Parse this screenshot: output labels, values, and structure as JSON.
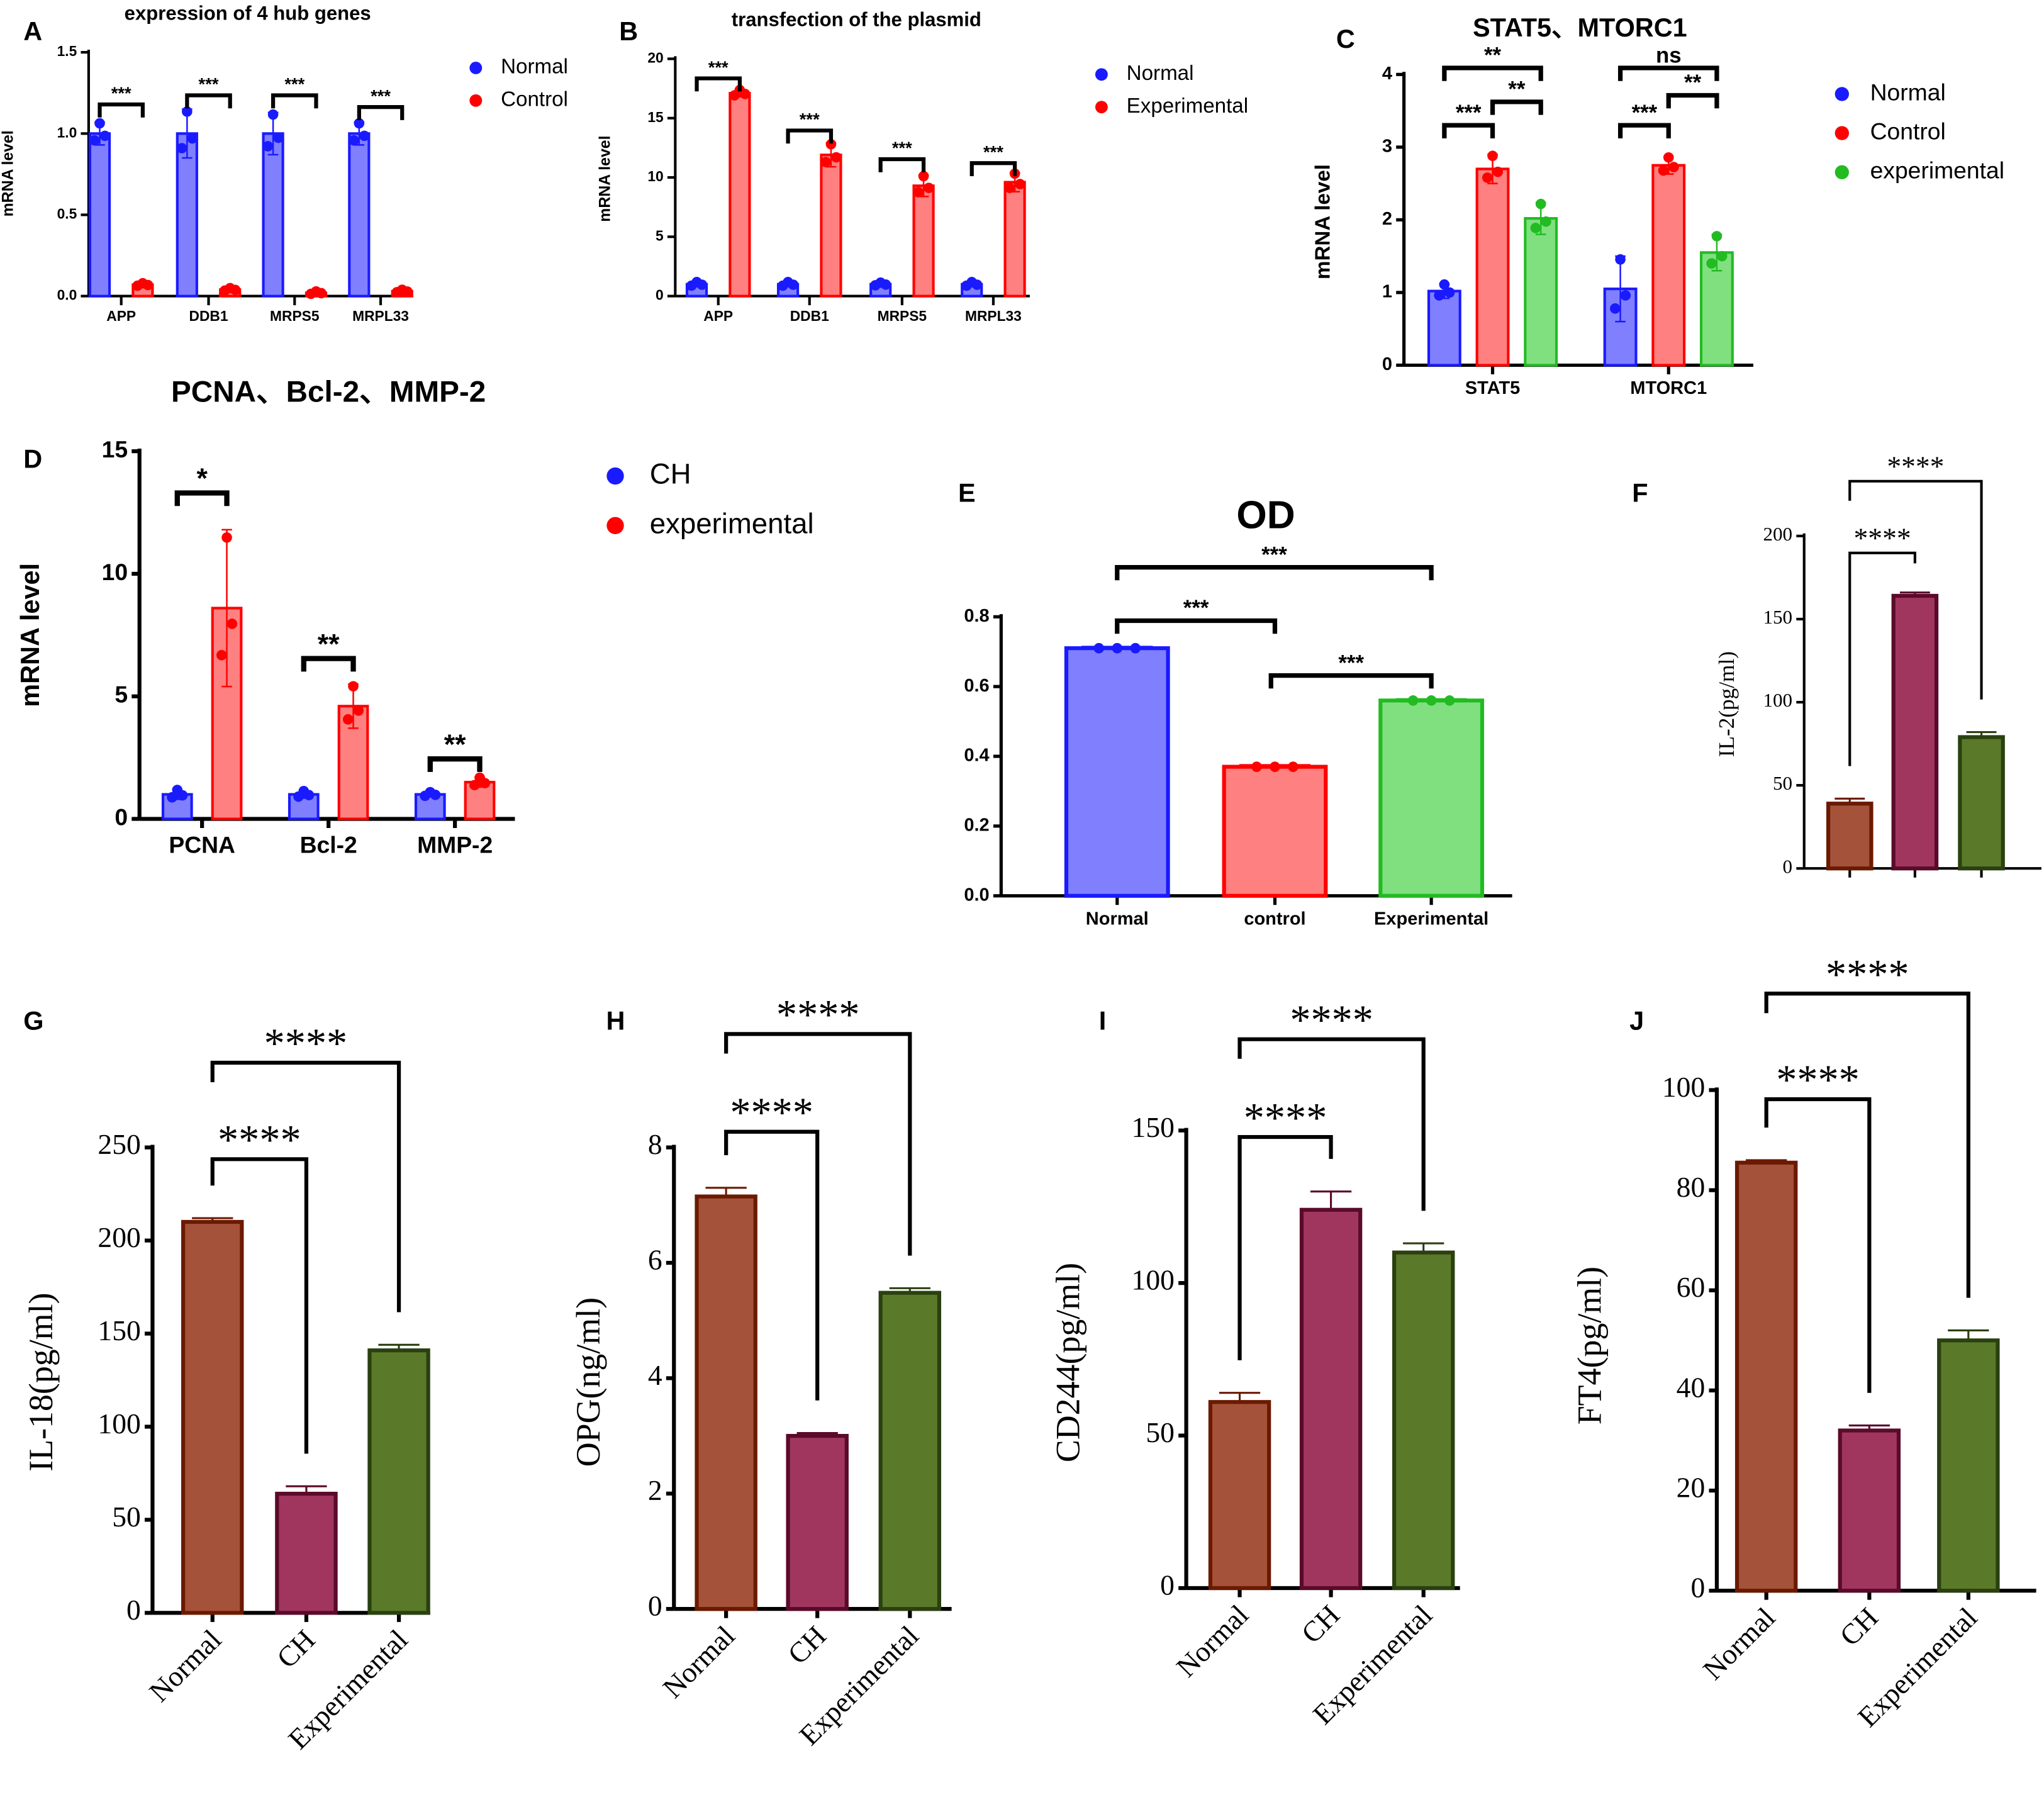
{
  "chart_data": [
    {
      "id": "A",
      "type": "bar",
      "title": "expression of 4 hub genes",
      "ylabel": "mRNA level",
      "ylim": [
        0,
        1.5
      ],
      "yticks": [
        "0.0",
        "0.5",
        "1.0",
        "1.5"
      ],
      "ytick_values": [
        0,
        0.5,
        1.0,
        1.5
      ],
      "categories": [
        "APP",
        "DDB1",
        "MRPS5",
        "MRPL33"
      ],
      "series": [
        {
          "name": "Normal",
          "color": "#1a1aff",
          "fill": "#8080ff",
          "values": [
            1,
            1,
            1,
            1
          ],
          "err": [
            0.07,
            0.15,
            0.13,
            0.07
          ]
        },
        {
          "name": "Control",
          "color": "#ff0000",
          "fill": "#ff8080",
          "values": [
            0.07,
            0.04,
            0.02,
            0.03
          ],
          "err": [
            0.01,
            0.01,
            0.01,
            0.01
          ]
        }
      ],
      "legend": [
        "Normal",
        "Control"
      ],
      "comparisons": [
        {
          "category": "APP",
          "groups": [
            0,
            1
          ],
          "label": "***"
        },
        {
          "category": "DDB1",
          "groups": [
            0,
            1
          ],
          "label": "***"
        },
        {
          "category": "MRPS5",
          "groups": [
            0,
            1
          ],
          "label": "***"
        },
        {
          "category": "MRPL33",
          "groups": [
            0,
            1
          ],
          "label": "***"
        }
      ]
    },
    {
      "id": "B",
      "type": "bar",
      "title": "transfection of the plasmid",
      "ylabel": "mRNA level",
      "ylim": [
        0,
        20
      ],
      "yticks": [
        "0",
        "5",
        "10",
        "15",
        "20"
      ],
      "ytick_values": [
        0,
        5,
        10,
        15,
        20
      ],
      "categories": [
        "APP",
        "DDB1",
        "MRPS5",
        "MRPL33"
      ],
      "series": [
        {
          "name": "Normal",
          "color": "#1a1aff",
          "fill": "#8080ff",
          "values": [
            1,
            1,
            1,
            1
          ],
          "err": [
            0.2,
            0.2,
            0.15,
            0.2
          ]
        },
        {
          "name": "Experimental",
          "color": "#ff0000",
          "fill": "#ff8080",
          "values": [
            17.1,
            11.9,
            9.3,
            9.6
          ],
          "err": [
            0.3,
            1.0,
            0.9,
            0.8
          ]
        }
      ],
      "legend": [
        "Normal",
        "Experimental"
      ],
      "comparisons": [
        {
          "category": "APP",
          "groups": [
            0,
            1
          ],
          "label": "***"
        },
        {
          "category": "DDB1",
          "groups": [
            0,
            1
          ],
          "label": "***"
        },
        {
          "category": "MRPS5",
          "groups": [
            0,
            1
          ],
          "label": "***"
        },
        {
          "category": "MRPL33",
          "groups": [
            0,
            1
          ],
          "label": "***"
        }
      ]
    },
    {
      "id": "C",
      "type": "bar",
      "title": "STAT5、MTORC1",
      "ylabel": "mRNA level",
      "ylim": [
        0,
        4
      ],
      "yticks": [
        "0",
        "1",
        "2",
        "3",
        "4"
      ],
      "ytick_values": [
        0,
        1,
        2,
        3,
        4
      ],
      "categories": [
        "STAT5",
        "MTORC1"
      ],
      "series": [
        {
          "name": "Normal",
          "color": "#1a1aff",
          "fill": "#8080ff",
          "values": [
            1.02,
            1.05
          ],
          "err": [
            0.1,
            0.45
          ]
        },
        {
          "name": "Control",
          "color": "#ff0000",
          "fill": "#ff8080",
          "values": [
            2.7,
            2.75
          ],
          "err": [
            0.2,
            0.12
          ]
        },
        {
          "name": "experimental",
          "color": "#22bb22",
          "fill": "#80e080",
          "values": [
            2.02,
            1.55
          ],
          "err": [
            0.22,
            0.25
          ]
        }
      ],
      "legend": [
        "Normal",
        "Control",
        "experimental"
      ],
      "comparisons": [
        {
          "category": "STAT5",
          "groups": [
            0,
            1
          ],
          "label": "***"
        },
        {
          "category": "STAT5",
          "groups": [
            1,
            2
          ],
          "label": "**"
        },
        {
          "category": "STAT5",
          "groups": [
            0,
            2
          ],
          "label": "**"
        },
        {
          "category": "MTORC1",
          "groups": [
            0,
            1
          ],
          "label": "***"
        },
        {
          "category": "MTORC1",
          "groups": [
            1,
            2
          ],
          "label": "**"
        },
        {
          "category": "MTORC1",
          "groups": [
            0,
            2
          ],
          "label": "ns"
        }
      ]
    },
    {
      "id": "D",
      "type": "bar",
      "title": "PCNA、Bcl-2、MMP-2",
      "ylabel": "mRNA level",
      "ylim": [
        0,
        15
      ],
      "yticks": [
        "0",
        "5",
        "10",
        "15"
      ],
      "ytick_values": [
        0,
        5,
        10,
        15
      ],
      "categories": [
        "PCNA",
        "Bcl-2",
        "MMP-2"
      ],
      "series": [
        {
          "name": "CH",
          "color": "#1a1aff",
          "fill": "#8080ff",
          "values": [
            1,
            1,
            1
          ],
          "err": [
            0.2,
            0.15,
            0.1
          ]
        },
        {
          "name": "experimental",
          "color": "#ff0000",
          "fill": "#ff8080",
          "values": [
            8.6,
            4.6,
            1.5
          ],
          "err": [
            3.2,
            0.9,
            0.2
          ]
        }
      ],
      "legend": [
        "CH",
        "experimental"
      ],
      "comparisons": [
        {
          "category": "PCNA",
          "groups": [
            0,
            1
          ],
          "label": "*"
        },
        {
          "category": "Bcl-2",
          "groups": [
            0,
            1
          ],
          "label": "**"
        },
        {
          "category": "MMP-2",
          "groups": [
            0,
            1
          ],
          "label": "**"
        }
      ]
    },
    {
      "id": "E",
      "type": "bar",
      "title": "OD",
      "ylabel": "",
      "ylim": [
        0,
        0.8
      ],
      "yticks": [
        "0.0",
        "0.2",
        "0.4",
        "0.6",
        "0.8"
      ],
      "ytick_values": [
        0,
        0.2,
        0.4,
        0.6,
        0.8
      ],
      "categories": [
        "Normal",
        "control",
        "Experimental"
      ],
      "bars": [
        {
          "value": 0.71,
          "err": 0.004,
          "color": "#1a1aff",
          "fill": "#8080ff"
        },
        {
          "value": 0.37,
          "err": 0.005,
          "color": "#ff0000",
          "fill": "#ff8080"
        },
        {
          "value": 0.56,
          "err": 0.004,
          "color": "#22bb22",
          "fill": "#80e080"
        }
      ],
      "comparisons": [
        {
          "groups": [
            0,
            1
          ],
          "label": "***"
        },
        {
          "groups": [
            1,
            2
          ],
          "label": "***"
        },
        {
          "groups": [
            0,
            2
          ],
          "label": "***"
        }
      ]
    },
    {
      "id": "F",
      "type": "bar",
      "title": "",
      "ylabel": "IL-2(pg/ml)",
      "ylim": [
        0,
        200
      ],
      "yticks": [
        "0",
        "50",
        "100",
        "150",
        "200"
      ],
      "ytick_values": [
        0,
        50,
        100,
        150,
        200
      ],
      "categories": [],
      "bars": [
        {
          "value": 39,
          "err": 3,
          "color": "#6b1a00",
          "fill": "#a5523a"
        },
        {
          "value": 164,
          "err": 2,
          "color": "#5a0a2a",
          "fill": "#a0365e"
        },
        {
          "value": 79,
          "err": 3,
          "color": "#2a4010",
          "fill": "#5a7a2a"
        }
      ],
      "comparisons": [
        {
          "groups": [
            0,
            1
          ],
          "label": "****"
        },
        {
          "groups": [
            0,
            2
          ],
          "label": "****"
        }
      ]
    },
    {
      "id": "G",
      "type": "bar",
      "title": "",
      "ylabel": "IL-18(pg/ml)",
      "ylim": [
        0,
        250
      ],
      "yticks": [
        "0",
        "50",
        "100",
        "150",
        "200",
        "250"
      ],
      "ytick_values": [
        0,
        50,
        100,
        150,
        200,
        250
      ],
      "categories": [
        "Normal",
        "CH",
        "Experimental"
      ],
      "bars": [
        {
          "value": 210,
          "err": 2,
          "color": "#6b1a00",
          "fill": "#a5523a"
        },
        {
          "value": 64,
          "err": 4,
          "color": "#5a0a2a",
          "fill": "#a0365e"
        },
        {
          "value": 141,
          "err": 3,
          "color": "#2a4010",
          "fill": "#5a7a2a"
        }
      ],
      "comparisons": [
        {
          "groups": [
            0,
            1
          ],
          "label": "****"
        },
        {
          "groups": [
            0,
            2
          ],
          "label": "****"
        }
      ]
    },
    {
      "id": "H",
      "type": "bar",
      "title": "",
      "ylabel": "OPG(ng/ml)",
      "ylim": [
        0,
        8
      ],
      "yticks": [
        "0",
        "2",
        "4",
        "6",
        "8"
      ],
      "ytick_values": [
        0,
        2,
        4,
        6,
        8
      ],
      "categories": [
        "Normal",
        "CH",
        "Experimental"
      ],
      "bars": [
        {
          "value": 7.15,
          "err": 0.15,
          "color": "#6b1a00",
          "fill": "#a5523a"
        },
        {
          "value": 3.0,
          "err": 0.05,
          "color": "#5a0a2a",
          "fill": "#a0365e"
        },
        {
          "value": 5.48,
          "err": 0.08,
          "color": "#2a4010",
          "fill": "#5a7a2a"
        }
      ],
      "comparisons": [
        {
          "groups": [
            0,
            1
          ],
          "label": "****"
        },
        {
          "groups": [
            0,
            2
          ],
          "label": "****"
        }
      ]
    },
    {
      "id": "I",
      "type": "bar",
      "title": "",
      "ylabel": "CD244(pg/ml)",
      "ylim": [
        0,
        150
      ],
      "yticks": [
        "0",
        "50",
        "100",
        "150"
      ],
      "ytick_values": [
        0,
        50,
        100,
        150
      ],
      "categories": [
        "Normal",
        "CH",
        "Experimental"
      ],
      "bars": [
        {
          "value": 61,
          "err": 3,
          "color": "#6b1a00",
          "fill": "#a5523a"
        },
        {
          "value": 124,
          "err": 6,
          "color": "#5a0a2a",
          "fill": "#a0365e"
        },
        {
          "value": 110,
          "err": 3,
          "color": "#2a4010",
          "fill": "#5a7a2a"
        }
      ],
      "comparisons": [
        {
          "groups": [
            0,
            1
          ],
          "label": "****"
        },
        {
          "groups": [
            0,
            2
          ],
          "label": "****"
        }
      ]
    },
    {
      "id": "J",
      "type": "bar",
      "title": "",
      "ylabel": "FT4(pg/ml)",
      "ylim": [
        0,
        100
      ],
      "yticks": [
        "0",
        "20",
        "40",
        "60",
        "80",
        "100"
      ],
      "ytick_values": [
        0,
        20,
        40,
        60,
        80,
        100
      ],
      "categories": [
        "Normal",
        "CH",
        "Experimental"
      ],
      "bars": [
        {
          "value": 85.5,
          "err": 0.5,
          "color": "#6b1a00",
          "fill": "#a5523a"
        },
        {
          "value": 32,
          "err": 1,
          "color": "#5a0a2a",
          "fill": "#a0365e"
        },
        {
          "value": 50,
          "err": 2,
          "color": "#2a4010",
          "fill": "#5a7a2a"
        }
      ],
      "comparisons": [
        {
          "groups": [
            0,
            1
          ],
          "label": "****"
        },
        {
          "groups": [
            0,
            2
          ],
          "label": "****"
        }
      ]
    }
  ]
}
